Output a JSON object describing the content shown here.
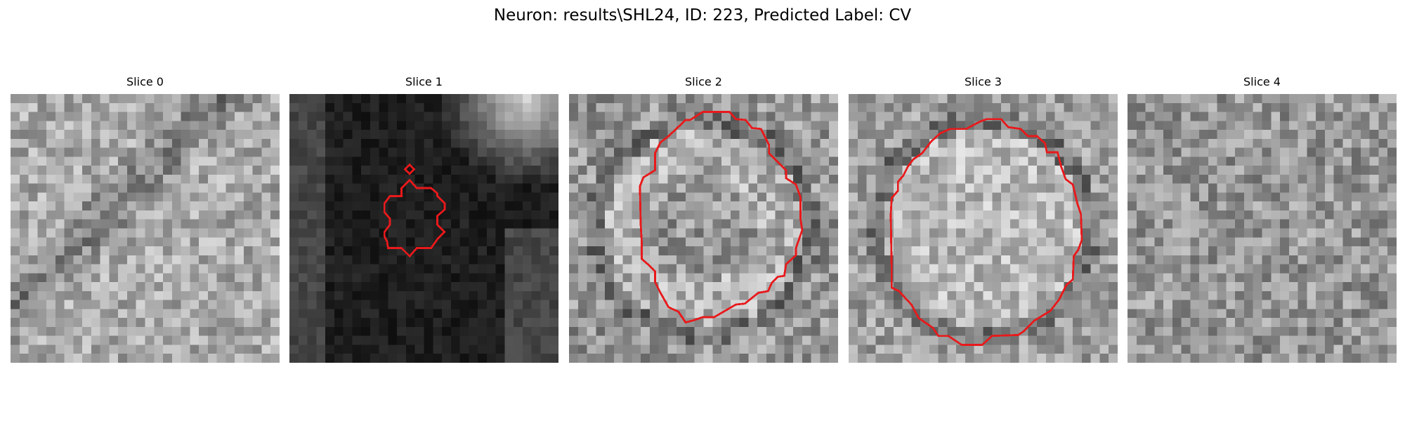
{
  "figure": {
    "title": "Neuron: results\\SHL24, ID: 223, Predicted Label: CV",
    "contour_color": "#e8191b",
    "colormap": "grayscale",
    "axes_visible": false
  },
  "panels": [
    {
      "title": "Slice 0",
      "image": "noisy grayscale microscopy tile, mid-gray texture with a darker diagonal band",
      "has_contour": false
    },
    {
      "title": "Slice 1",
      "image": "mostly black tile with a bright corner at top-right",
      "has_contour": true
    },
    {
      "title": "Slice 2",
      "image": "mottled gray tile with a bright ring around a roughly circular cell body",
      "has_contour": true
    },
    {
      "title": "Slice 3",
      "image": "mottled gray tile with a bright rounded cell body",
      "has_contour": true
    },
    {
      "title": "Slice 4",
      "image": "noisy mid-gray tile, no distinct structure",
      "has_contour": false
    }
  ]
}
